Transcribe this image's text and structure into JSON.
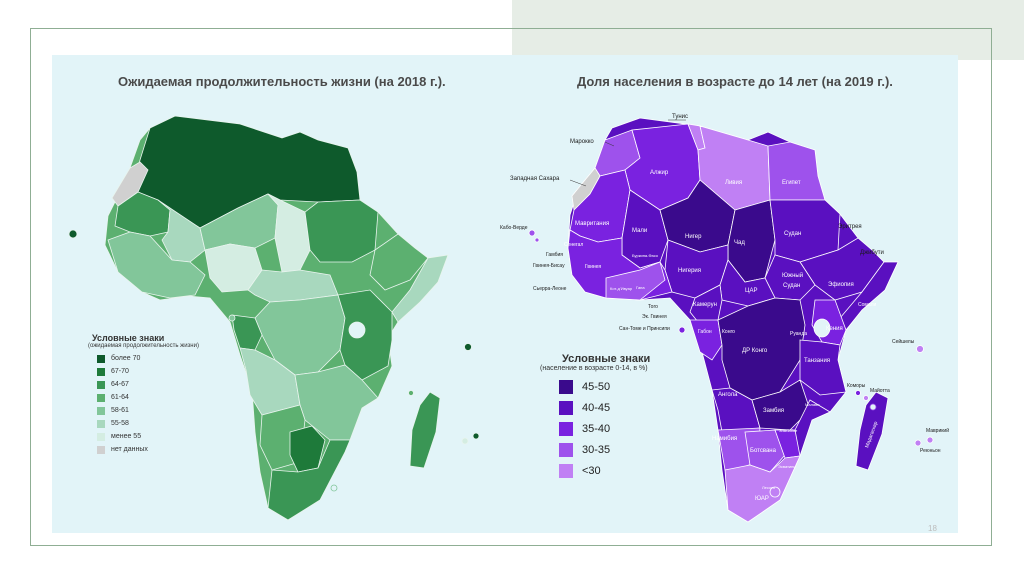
{
  "left_map": {
    "title": "Ожидаемая продолжительность жизни (на 2018 г.).",
    "legend": {
      "title": "Условные знаки",
      "subtitle": "(ожидаемая продолжительность жизни)",
      "items": [
        {
          "label": "более 70",
          "color": "#0e5a2c"
        },
        {
          "label": "67-70",
          "color": "#1e7a3a"
        },
        {
          "label": "64-67",
          "color": "#3a9655"
        },
        {
          "label": "61-64",
          "color": "#5cb070"
        },
        {
          "label": "58-61",
          "color": "#82c69a"
        },
        {
          "label": "55-58",
          "color": "#a8d8be"
        },
        {
          "label": "менее 55",
          "color": "#d4ede2"
        },
        {
          "label": "нет данных",
          "color": "#d0d0d0"
        }
      ]
    }
  },
  "right_map": {
    "title": "Доля населения в возрасте до 14 лет (на 2019 г.).",
    "legend": {
      "title": "Условные знаки",
      "subtitle": "(население в возрасте 0-14, в %)",
      "items": [
        {
          "label": "45-50",
          "color": "#3a0a8c"
        },
        {
          "label": "40-45",
          "color": "#5a10c0"
        },
        {
          "label": "35-40",
          "color": "#7a22e0"
        },
        {
          "label": "30-35",
          "color": "#9e52ec"
        },
        {
          "label": "<30",
          "color": "#c080f4"
        }
      ]
    },
    "labels": {
      "tunisia": "Тунис",
      "morocco": "Марокко",
      "algeria": "Алжир",
      "libya": "Ливия",
      "egypt": "Египет",
      "w_sahara": "Западная Сахара",
      "mauritania": "Мавритания",
      "mali": "Мали",
      "niger": "Нигер",
      "chad": "Чад",
      "sudan": "Судан",
      "eritrea": "Эритрея",
      "djibouti": "Джибути",
      "cabo_verde": "Кабо-Верде",
      "senegal": "Сенегал",
      "gambia": "Гамбия",
      "guinea_bissau": "Гвинея-Бисау",
      "guinea": "Гвинея",
      "burkina": "Буркина-Фасо",
      "nigeria": "Нигерия",
      "s_sudan_1": "Южный",
      "s_sudan_2": "Судан",
      "ethiopia": "Эфиопия",
      "sierra": "Сьерра-Леоне",
      "cote": "Кот-д'Ивуар",
      "ghana": "Гана",
      "togo": "Того",
      "car": "ЦАР",
      "cameroon": "Камерун",
      "somalia": "Сомали",
      "eq_guinea": "Эк. Гвинея",
      "stp": "Сан-Томе и Принсипи",
      "gabon": "Габон",
      "congo": "Конго",
      "rwanda": "Руанда",
      "kenya": "Кения",
      "drc": "ДР Конго",
      "seychelles": "Сейшелы",
      "tanzania": "Танзания",
      "comoros": "Коморы",
      "mayotte": "Майотта",
      "angola": "Ангола",
      "malawi": "Малави",
      "zambia": "Замбия",
      "madagascar": "Мадагаскар",
      "mauritius": "Маврикий",
      "reunion": "Реюньон",
      "namibia": "Намибия",
      "zimbabwe": "Зимбабве",
      "botswana": "Ботсвана",
      "eswatini": "Эсватини",
      "lesotho": "Лесото",
      "sa": "ЮАР"
    }
  },
  "page_number": "18"
}
